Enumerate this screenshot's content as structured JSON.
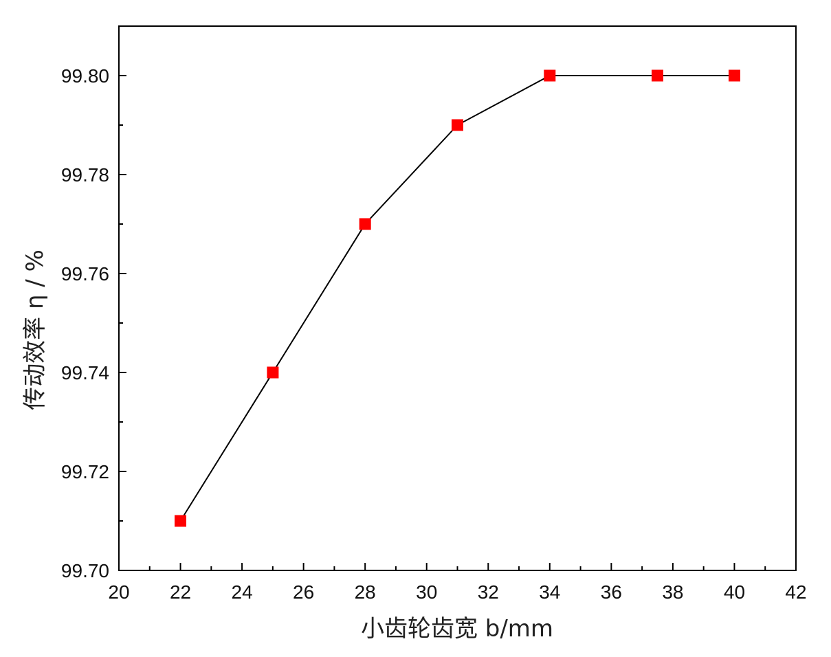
{
  "chart_data": {
    "type": "line",
    "title": "",
    "xlabel": "小齿轮齿宽 b/mm",
    "ylabel": "传动效率 η / %",
    "xlim": [
      20,
      42
    ],
    "ylim": [
      99.7,
      99.81
    ],
    "xticks": [
      "20",
      "22",
      "24",
      "26",
      "28",
      "30",
      "32",
      "34",
      "36",
      "38",
      "40",
      "42"
    ],
    "yticks": [
      "99.70",
      "99.72",
      "99.74",
      "99.76",
      "99.78",
      "99.80"
    ],
    "grid": false,
    "legend": "none",
    "marker": "square",
    "series": [
      {
        "x": [
          22,
          25,
          28,
          31,
          34,
          37.5,
          40
        ],
        "y": [
          99.71,
          99.74,
          99.77,
          99.79,
          99.8,
          99.8,
          99.8
        ],
        "line_color": "#000000",
        "marker_color": "#ff0000"
      }
    ]
  }
}
